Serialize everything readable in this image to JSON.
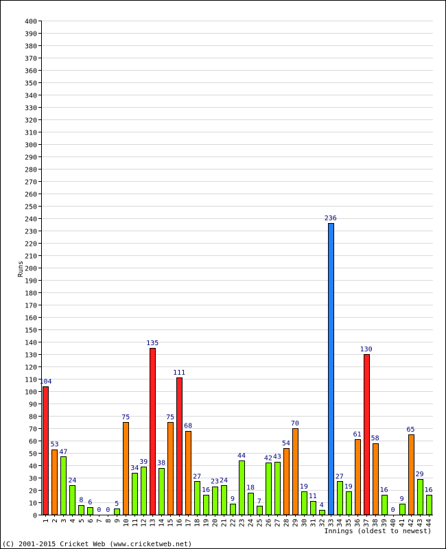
{
  "chart_data": {
    "type": "bar",
    "title": "",
    "xlabel": "Innings (oldest to newest)",
    "ylabel": "Runs",
    "ylim": [
      0,
      400
    ],
    "ytick_step": 10,
    "grid": true,
    "categories": [
      "1",
      "2",
      "3",
      "4",
      "5",
      "6",
      "7",
      "8",
      "9",
      "10",
      "11",
      "12",
      "13",
      "14",
      "15",
      "16",
      "17",
      "18",
      "19",
      "20",
      "21",
      "22",
      "23",
      "24",
      "25",
      "26",
      "27",
      "28",
      "29",
      "30",
      "31",
      "32",
      "33",
      "34",
      "35",
      "36",
      "37",
      "38",
      "39",
      "40",
      "41",
      "42",
      "43",
      "44"
    ],
    "values": [
      104,
      53,
      47,
      24,
      8,
      6,
      0,
      0,
      5,
      75,
      34,
      39,
      135,
      38,
      75,
      111,
      68,
      27,
      16,
      23,
      24,
      9,
      44,
      18,
      7,
      42,
      43,
      54,
      70,
      19,
      11,
      4,
      236,
      27,
      19,
      61,
      130,
      58,
      16,
      0,
      9,
      65,
      29,
      16
    ],
    "value_labels": [
      "104",
      "53",
      "47",
      "24",
      "8",
      "6",
      "0",
      "0",
      "5",
      "75",
      "34",
      "39",
      "135",
      "38",
      "75",
      "111",
      "68",
      "27",
      "16",
      "23",
      "24",
      "9",
      "44",
      "18",
      "7",
      "42",
      "43",
      "54",
      "70",
      "19",
      "11",
      "4",
      "236",
      "27",
      "19",
      "61",
      "130",
      "58",
      "16",
      "0",
      "9",
      "65",
      "29",
      "16"
    ],
    "colors": {
      "under_50": "#80ff00",
      "fifty": "#ff8000",
      "hundred": "#ff2020",
      "double_hundred": "#2080ff",
      "bar_stroke": "#000000",
      "grid": "#d9d9d9",
      "label_text": "#000080"
    }
  },
  "footer": {
    "copyright": "(C) 2001-2015 Cricket Web (www.cricketweb.net)"
  }
}
